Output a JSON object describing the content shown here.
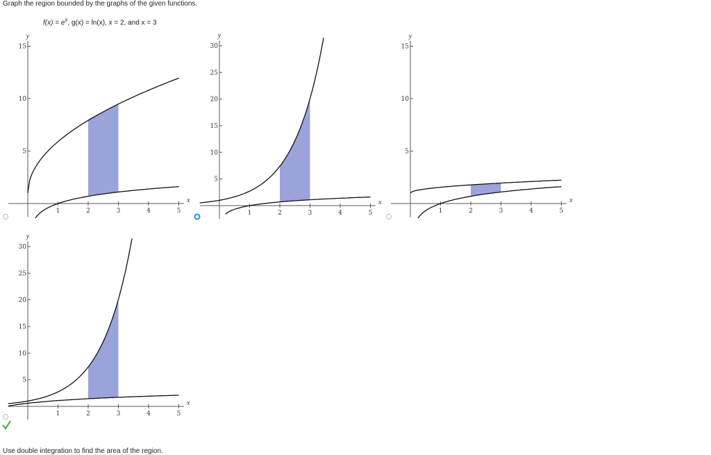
{
  "prompt": "Graph the region bounded by the graphs of the given functions.",
  "functions": {
    "f_prefix": "f(x) = e",
    "exponent": "x",
    "rest": ", g(x) = ln(x), x = 2, and x = 3"
  },
  "options": [
    {
      "x_label": "x",
      "y_label": "y",
      "xticks": [
        1,
        2,
        3,
        4,
        5
      ],
      "yticks": [
        5,
        10,
        15
      ],
      "selected": false,
      "correct": false
    },
    {
      "x_label": "x",
      "y_label": "y",
      "xticks": [
        1,
        2,
        3,
        4,
        5
      ],
      "yticks": [
        5,
        10,
        15,
        20,
        25,
        30
      ],
      "selected": true,
      "correct": false
    },
    {
      "x_label": "x",
      "y_label": "y",
      "xticks": [
        1,
        2,
        3,
        4,
        5
      ],
      "yticks": [
        5,
        10,
        15
      ],
      "selected": false,
      "correct": false
    },
    {
      "x_label": "x",
      "y_label": "y",
      "xticks": [
        1,
        2,
        3,
        4,
        5
      ],
      "yticks": [
        5,
        10,
        15,
        20,
        25,
        30
      ],
      "selected": false,
      "correct": true
    }
  ],
  "footer": "Use double integration to find the area of the region."
}
